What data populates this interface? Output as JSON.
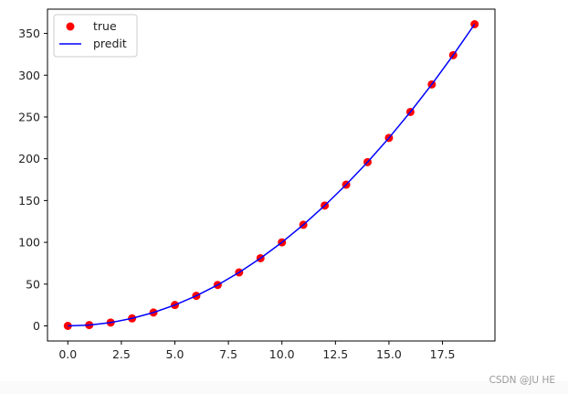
{
  "chart_data": {
    "type": "scatter+line",
    "x": [
      0,
      1,
      2,
      3,
      4,
      5,
      6,
      7,
      8,
      9,
      10,
      11,
      12,
      13,
      14,
      15,
      16,
      17,
      18,
      19
    ],
    "series": [
      {
        "name": "true",
        "kind": "scatter",
        "color": "#ff0000",
        "values": [
          0,
          1,
          4,
          9,
          16,
          25,
          36,
          49,
          64,
          81,
          100,
          121,
          144,
          169,
          196,
          225,
          256,
          289,
          324,
          361
        ]
      },
      {
        "name": "predit",
        "kind": "line",
        "color": "#0000ff",
        "values": [
          0,
          1,
          4,
          9,
          16,
          25,
          36,
          49,
          64,
          81,
          100,
          121,
          144,
          169,
          196,
          225,
          256,
          289,
          324,
          361
        ]
      }
    ],
    "xlim": [
      -0.95,
      19.95
    ],
    "ylim": [
      -18.05,
      379.05
    ],
    "xticks": [
      0.0,
      2.5,
      5.0,
      7.5,
      10.0,
      12.5,
      15.0,
      17.5
    ],
    "xtick_labels": [
      "0.0",
      "2.5",
      "5.0",
      "7.5",
      "10.0",
      "12.5",
      "15.0",
      "17.5"
    ],
    "yticks": [
      0,
      50,
      100,
      150,
      200,
      250,
      300,
      350
    ],
    "ytick_labels": [
      "0",
      "50",
      "100",
      "150",
      "200",
      "250",
      "300",
      "350"
    ],
    "legend_position": "top-left",
    "grid": false
  },
  "watermark": "CSDN @JU HE"
}
